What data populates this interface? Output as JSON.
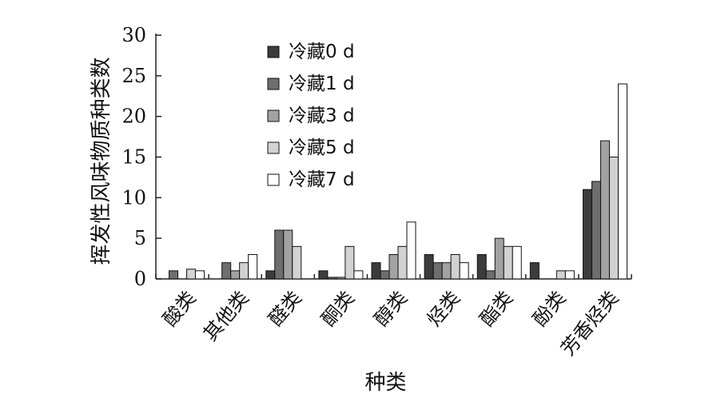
{
  "chart_data": {
    "type": "bar",
    "title": "",
    "xlabel": "种类",
    "ylabel": "挥发性风味物质种类数",
    "ylim": [
      0,
      30
    ],
    "yticks": [
      0,
      5,
      10,
      15,
      20,
      25,
      30
    ],
    "grid": false,
    "legend_position": "top-left",
    "categories": [
      "酸类",
      "其他类",
      "醛类",
      "酮类",
      "醇类",
      "烃类",
      "酯类",
      "酚类",
      "芳香烃类"
    ],
    "series": [
      {
        "name": "冷藏0 d",
        "color": "#3c3c3c",
        "values": [
          0,
          0,
          1,
          1,
          2,
          3,
          3,
          2,
          11
        ]
      },
      {
        "name": "冷藏1 d",
        "color": "#6e6e6e",
        "values": [
          1,
          2,
          6,
          0.2,
          1,
          2,
          1,
          0,
          12
        ]
      },
      {
        "name": "冷藏3 d",
        "color": "#a2a2a2",
        "values": [
          0,
          1,
          6,
          0.2,
          3,
          2,
          5,
          0,
          17
        ]
      },
      {
        "name": "冷藏5 d",
        "color": "#d2d2d2",
        "values": [
          1.2,
          2,
          4,
          4,
          4,
          3,
          4,
          1,
          15
        ]
      },
      {
        "name": "冷藏7 d",
        "color": "#ffffff",
        "values": [
          1,
          3,
          0,
          1,
          7,
          2,
          4,
          1,
          24
        ]
      }
    ]
  }
}
